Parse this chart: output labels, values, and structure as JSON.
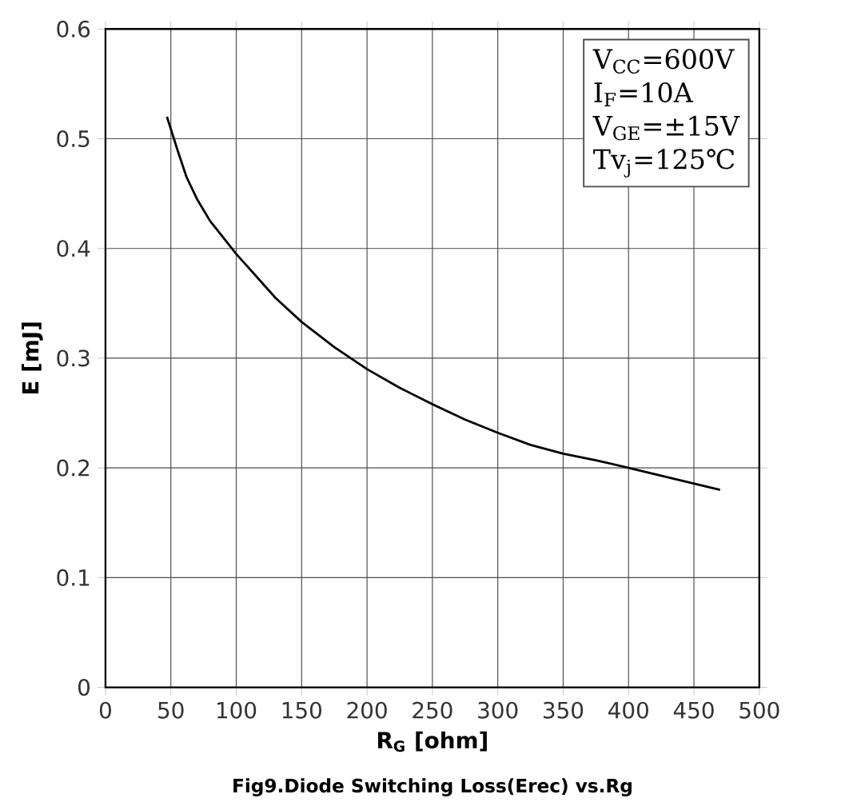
{
  "chart_data": {
    "type": "line",
    "xlabel": "R$_{G}$  [ohm]",
    "ylabel": "E [mJ]",
    "annotations": [
      "V$_{CC}$=600V",
      "I$_{F}$=10A",
      "V$_{GE}$=±15V",
      "Tv$_{j}$=125℃",
      "Fig9.Diode Switching Loss(Erec) vs.Rg"
    ],
    "series": [
      {
        "color": "#000000",
        "x": [
          47,
          55,
          62,
          70,
          80,
          90,
          100,
          115,
          130,
          150,
          175,
          200,
          225,
          250,
          275,
          300,
          325,
          350,
          375,
          400,
          435,
          470
        ],
        "values": [
          0.52,
          0.49,
          0.465,
          0.445,
          0.425,
          0.41,
          0.395,
          0.375,
          0.355,
          0.333,
          0.31,
          0.29,
          0.273,
          0.258,
          0.244,
          0.232,
          0.221,
          0.213,
          0.207,
          0.2,
          0.19,
          0.18
        ]
      }
    ],
    "xlim": [
      0,
      500
    ],
    "xticks": [
      0,
      50,
      100,
      150,
      200,
      250,
      300,
      350,
      400,
      450,
      500
    ],
    "ylim": [
      0,
      0.6
    ],
    "yticks": [
      0,
      0.1,
      0.2,
      0.3,
      0.4,
      0.5,
      0.6
    ],
    "grid": true,
    "line_style": "solid",
    "marker": "none"
  }
}
